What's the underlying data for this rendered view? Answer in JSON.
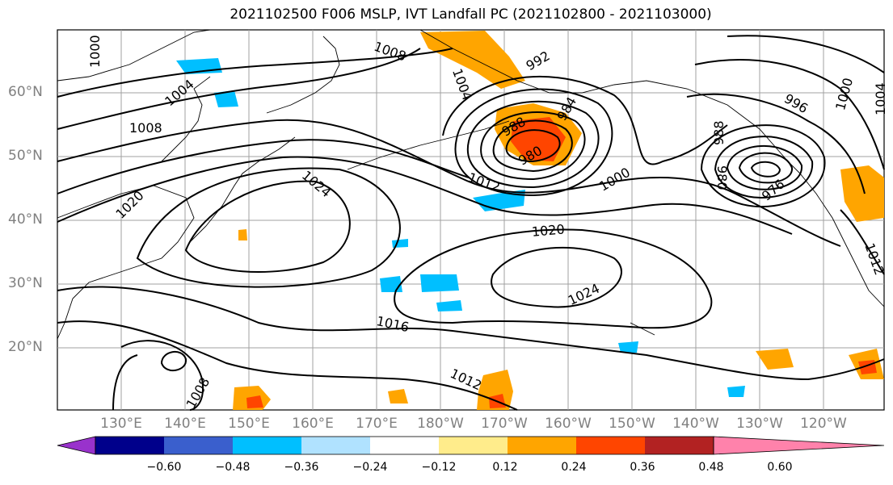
{
  "title": "2021102500 F006 MSLP, IVT Landfall PC (2021102800 - 2021103000)",
  "lat_labels": [
    "60°N",
    "50°N",
    "40°N",
    "30°N",
    "20°N"
  ],
  "lon_labels": [
    "130°E",
    "140°E",
    "150°E",
    "160°E",
    "170°E",
    "180°W",
    "170°W",
    "160°W",
    "150°W",
    "140°W",
    "130°W",
    "120°W"
  ],
  "contour_labels": [
    "1000",
    "1004",
    "1008",
    "1008",
    "1004",
    "992",
    "988",
    "980",
    "984",
    "1000",
    "1012",
    "1024",
    "1020",
    "1020",
    "1024",
    "1016",
    "1012",
    "1008",
    "996",
    "1000",
    "1004",
    "988",
    "976",
    "980",
    "1012"
  ],
  "colorbar": {
    "ticks": [
      "−0.60",
      "−0.48",
      "−0.36",
      "−0.24",
      "−0.12",
      "0.12",
      "0.24",
      "0.36",
      "0.48",
      "0.60"
    ],
    "colors": [
      "#9932cc",
      "#00008b",
      "#3a5fcd",
      "#00bfff",
      "#b0e2ff",
      "#ffffff",
      "#ffec8b",
      "#ffa500",
      "#ff4500",
      "#b22222",
      "#ff82ab"
    ]
  },
  "colors": {
    "positive_ivt": "#ffa500",
    "strong_positive": "#ff4500",
    "negative_ivt": "#00bfff",
    "contour": "#000000",
    "grid": "#808080"
  }
}
